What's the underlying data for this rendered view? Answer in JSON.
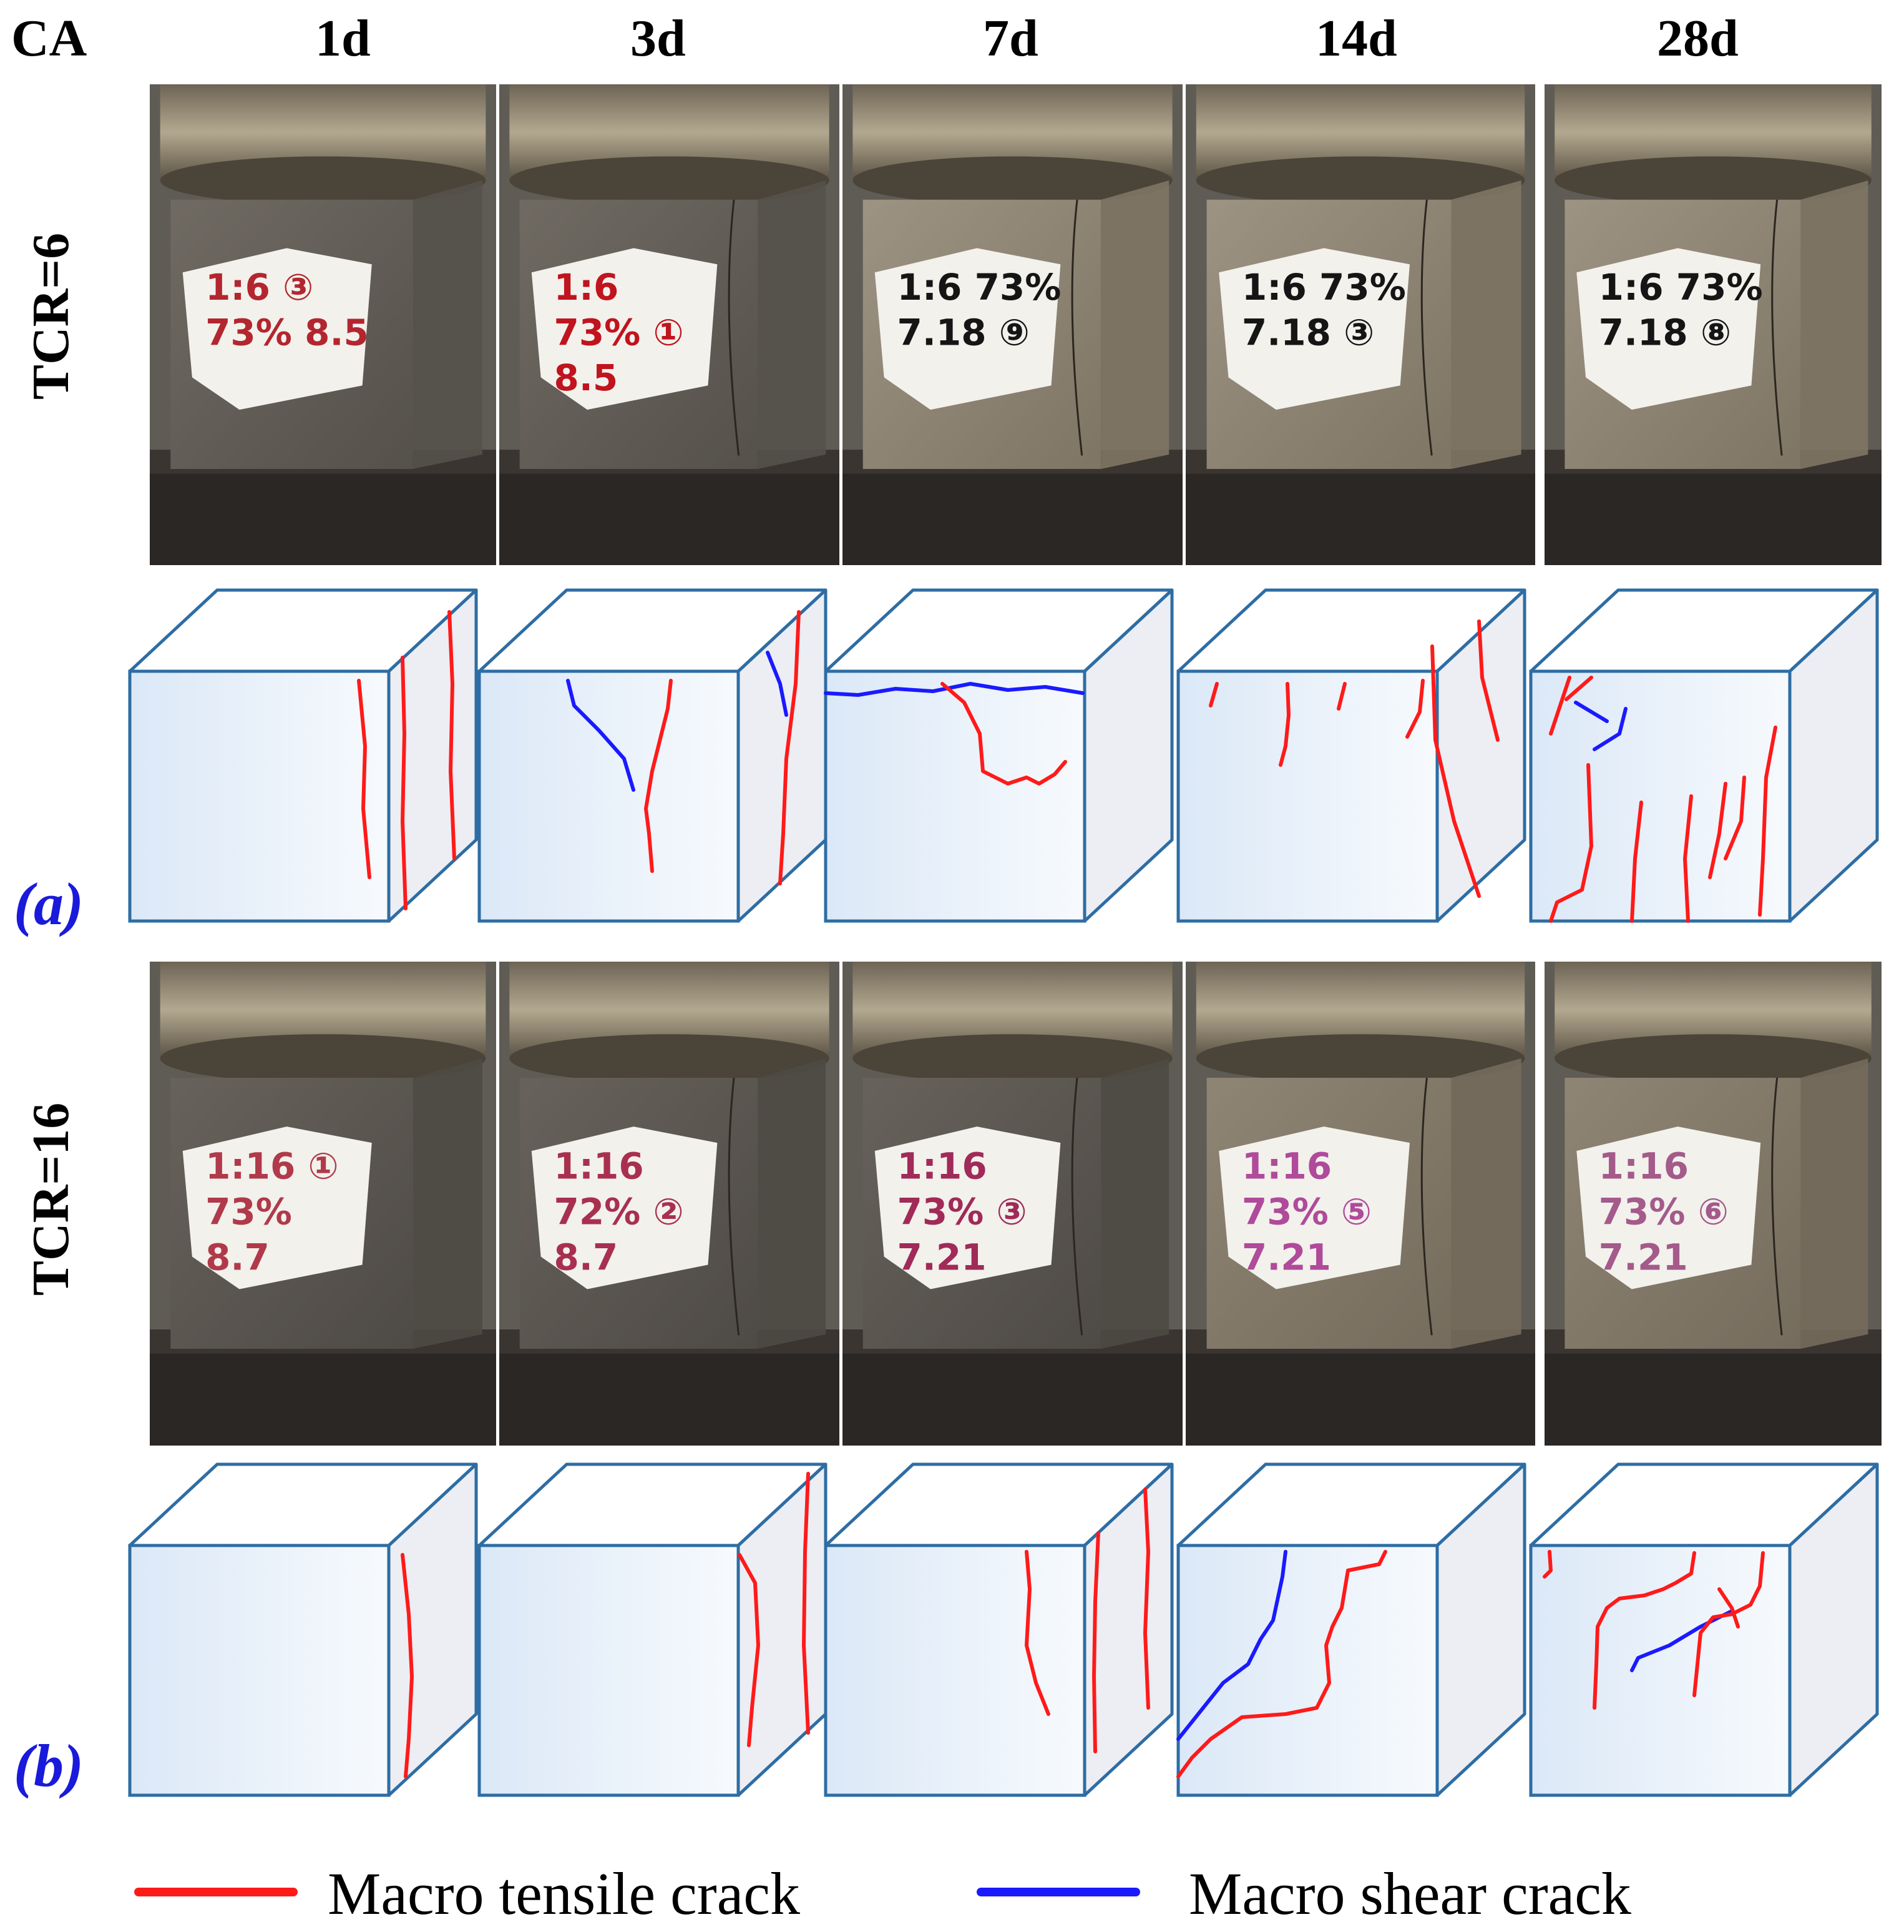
{
  "header": {
    "ca_label": "CA",
    "ages": [
      "1d",
      "3d",
      "7d",
      "14d",
      "28d"
    ]
  },
  "rows": [
    {
      "ratio_label": "TCR=6",
      "panel_tag": "(a)",
      "specimen_labels": [
        [
          "1:6 ③",
          "73% 8.5"
        ],
        [
          "1:6",
          "73% ①",
          "8.5"
        ],
        [
          "1:6 73%",
          "7.18 ⑨"
        ],
        [
          "1:6 73%",
          "7.18 ③"
        ],
        [
          "1:6 73%",
          "7.18 ⑧"
        ]
      ],
      "label_color": [
        "#b3262f",
        "#c0141e",
        "#151515",
        "#151515",
        "#151515"
      ]
    },
    {
      "ratio_label": "TCR=16",
      "panel_tag": "(b)",
      "specimen_labels": [
        [
          "1:16 ①",
          "73%",
          "8.7"
        ],
        [
          "1:16",
          "72% ②",
          "8.7"
        ],
        [
          "1:16",
          "73% ③",
          "7.21"
        ],
        [
          "1:16",
          "73% ⑤",
          "7.21"
        ],
        [
          "1:16",
          "73% ⑥",
          "7.21"
        ]
      ],
      "label_color": [
        "#b03a4a",
        "#a8304e",
        "#a02a58",
        "#b04a9a",
        "#a45a8a"
      ]
    }
  ],
  "legend": {
    "tensile_label": "Macro tensile crack",
    "shear_label": "Macro shear crack",
    "tensile_color": "#ff1a1a",
    "shear_color": "#1a1aff"
  },
  "colors": {
    "cube_edge": "#2e6da4",
    "cube_fill": "#eef4fb",
    "tag_color": "#1a1adb"
  }
}
